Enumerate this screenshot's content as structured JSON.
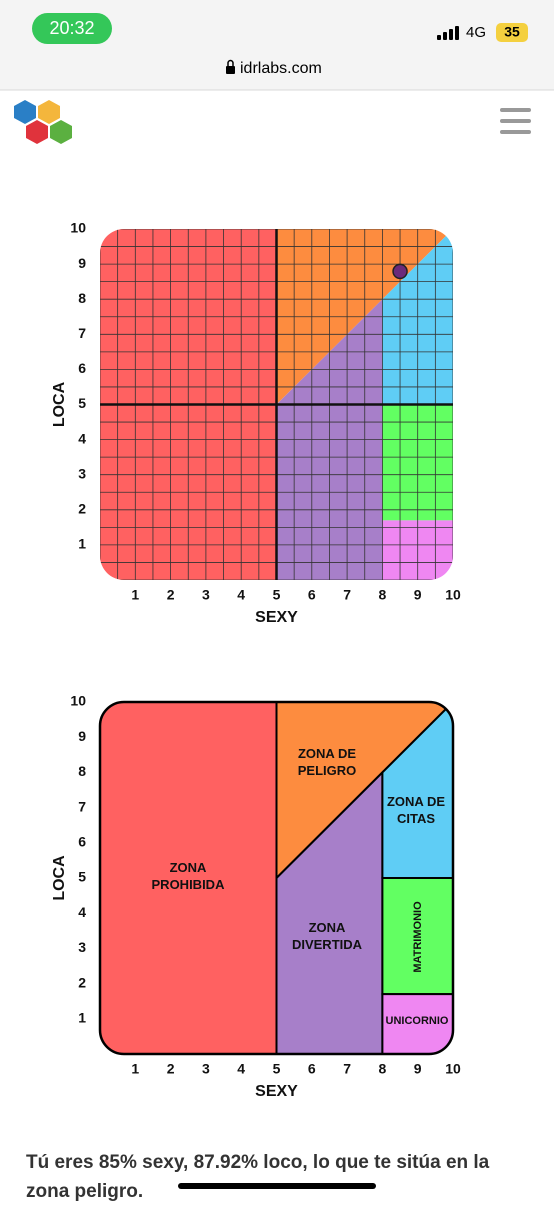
{
  "status_bar": {
    "time": "20:32",
    "network": "4G",
    "battery": "35"
  },
  "url": "idrlabs.com",
  "chart_data": [
    {
      "type": "scatter",
      "xlabel": "SEXY",
      "ylabel": "LOCA",
      "xlim": [
        0,
        10
      ],
      "ylim": [
        0,
        10
      ],
      "xticks": [
        1,
        2,
        3,
        4,
        5,
        6,
        7,
        8,
        9,
        10
      ],
      "yticks": [
        1,
        2,
        3,
        4,
        5,
        6,
        7,
        8,
        9,
        10
      ],
      "x": [
        8.5
      ],
      "values": [
        8.792
      ],
      "color": "#6b2a7b",
      "grid": true
    },
    {
      "type": "zones",
      "xlabel": "SEXY",
      "ylabel": "LOCA",
      "xlim": [
        0,
        10
      ],
      "ylim": [
        0,
        10
      ],
      "xticks": [
        1,
        2,
        3,
        4,
        5,
        6,
        7,
        8,
        9,
        10
      ],
      "yticks": [
        1,
        2,
        3,
        4,
        5,
        6,
        7,
        8,
        9,
        10
      ],
      "zones": [
        {
          "name": "prohibida",
          "lines": [
            "ZONA",
            "PROHIBIDA"
          ]
        },
        {
          "name": "peligro",
          "lines": [
            "ZONA DE",
            "PELIGRO"
          ]
        },
        {
          "name": "divertida",
          "lines": [
            "ZONA",
            "DIVERTIDA"
          ]
        },
        {
          "name": "citas",
          "lines": [
            "ZONA DE",
            "CITAS"
          ]
        },
        {
          "name": "matrimonio",
          "lines": [
            "MATRIMONIO"
          ]
        },
        {
          "name": "unicornio",
          "lines": [
            "UNICORNIO"
          ]
        }
      ]
    }
  ],
  "result_text": "Tú eres 85% sexy, 87.92% loco, lo que te sitúa en la zona peligro."
}
